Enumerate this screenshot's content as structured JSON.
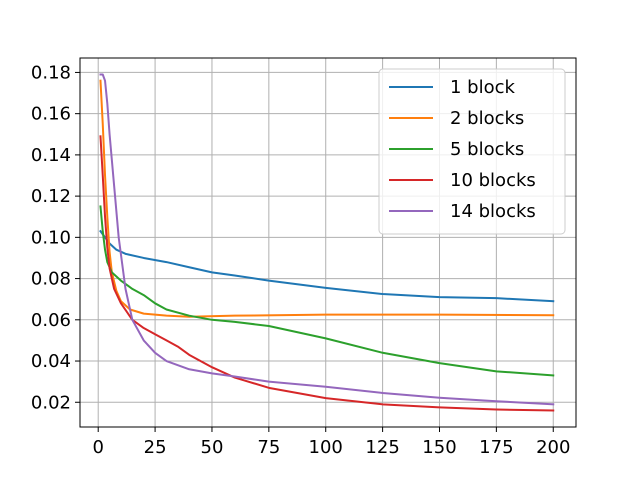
{
  "chart_data": {
    "type": "line",
    "title": "",
    "xlabel": "",
    "ylabel": "",
    "xlim": [
      -8,
      210
    ],
    "ylim": [
      0.008,
      0.187
    ],
    "xticks": [
      0,
      25,
      50,
      75,
      100,
      125,
      150,
      175,
      200
    ],
    "yticks": [
      0.02,
      0.04,
      0.06,
      0.08,
      0.1,
      0.12,
      0.14,
      0.16,
      0.18
    ],
    "xtick_labels": [
      "0",
      "25",
      "50",
      "75",
      "100",
      "125",
      "150",
      "175",
      "200"
    ],
    "ytick_labels": [
      "0.02",
      "0.04",
      "0.06",
      "0.08",
      "0.10",
      "0.12",
      "0.14",
      "0.16",
      "0.18"
    ],
    "grid": true,
    "legend_position": "top-right",
    "series": [
      {
        "name": "1 block",
        "color": "#1f77b4",
        "points": [
          [
            1,
            0.103
          ],
          [
            3,
            0.1
          ],
          [
            5,
            0.097
          ],
          [
            8,
            0.094
          ],
          [
            12,
            0.092
          ],
          [
            20,
            0.09
          ],
          [
            30,
            0.088
          ],
          [
            40,
            0.0855
          ],
          [
            50,
            0.083
          ],
          [
            60,
            0.0815
          ],
          [
            75,
            0.079
          ],
          [
            100,
            0.0755
          ],
          [
            125,
            0.0725
          ],
          [
            150,
            0.071
          ],
          [
            175,
            0.0705
          ],
          [
            200,
            0.069
          ]
        ]
      },
      {
        "name": "2 blocks",
        "color": "#ff7f0e",
        "points": [
          [
            1,
            0.176
          ],
          [
            2,
            0.155
          ],
          [
            3,
            0.13
          ],
          [
            4,
            0.11
          ],
          [
            5,
            0.093
          ],
          [
            6,
            0.083
          ],
          [
            8,
            0.074
          ],
          [
            10,
            0.069
          ],
          [
            14,
            0.065
          ],
          [
            20,
            0.063
          ],
          [
            30,
            0.062
          ],
          [
            40,
            0.0615
          ],
          [
            60,
            0.062
          ],
          [
            100,
            0.0625
          ],
          [
            150,
            0.0625
          ],
          [
            200,
            0.0622
          ]
        ]
      },
      {
        "name": "5 blocks",
        "color": "#2ca02c",
        "points": [
          [
            1,
            0.115
          ],
          [
            2,
            0.103
          ],
          [
            3,
            0.094
          ],
          [
            4,
            0.088
          ],
          [
            6,
            0.083
          ],
          [
            10,
            0.079
          ],
          [
            15,
            0.075
          ],
          [
            20,
            0.072
          ],
          [
            25,
            0.068
          ],
          [
            30,
            0.065
          ],
          [
            40,
            0.062
          ],
          [
            50,
            0.06
          ],
          [
            60,
            0.059
          ],
          [
            75,
            0.057
          ],
          [
            100,
            0.051
          ],
          [
            125,
            0.044
          ],
          [
            150,
            0.039
          ],
          [
            175,
            0.035
          ],
          [
            200,
            0.033
          ]
        ]
      },
      {
        "name": "10 blocks",
        "color": "#d62728",
        "points": [
          [
            1,
            0.149
          ],
          [
            2,
            0.13
          ],
          [
            3,
            0.11
          ],
          [
            4,
            0.095
          ],
          [
            5,
            0.085
          ],
          [
            7,
            0.075
          ],
          [
            10,
            0.068
          ],
          [
            15,
            0.06
          ],
          [
            20,
            0.056
          ],
          [
            25,
            0.053
          ],
          [
            30,
            0.05
          ],
          [
            35,
            0.047
          ],
          [
            40,
            0.043
          ],
          [
            50,
            0.037
          ],
          [
            60,
            0.032
          ],
          [
            75,
            0.027
          ],
          [
            100,
            0.022
          ],
          [
            125,
            0.019
          ],
          [
            150,
            0.0175
          ],
          [
            175,
            0.0165
          ],
          [
            200,
            0.016
          ]
        ]
      },
      {
        "name": "14 blocks",
        "color": "#9467bd",
        "points": [
          [
            1,
            0.179
          ],
          [
            2,
            0.179
          ],
          [
            3,
            0.176
          ],
          [
            4,
            0.165
          ],
          [
            5,
            0.15
          ],
          [
            7,
            0.125
          ],
          [
            9,
            0.1
          ],
          [
            12,
            0.075
          ],
          [
            15,
            0.06
          ],
          [
            20,
            0.05
          ],
          [
            25,
            0.044
          ],
          [
            30,
            0.04
          ],
          [
            40,
            0.036
          ],
          [
            50,
            0.034
          ],
          [
            60,
            0.0325
          ],
          [
            75,
            0.03
          ],
          [
            100,
            0.0275
          ],
          [
            125,
            0.0245
          ],
          [
            150,
            0.0222
          ],
          [
            175,
            0.0205
          ],
          [
            200,
            0.019
          ]
        ]
      }
    ]
  }
}
